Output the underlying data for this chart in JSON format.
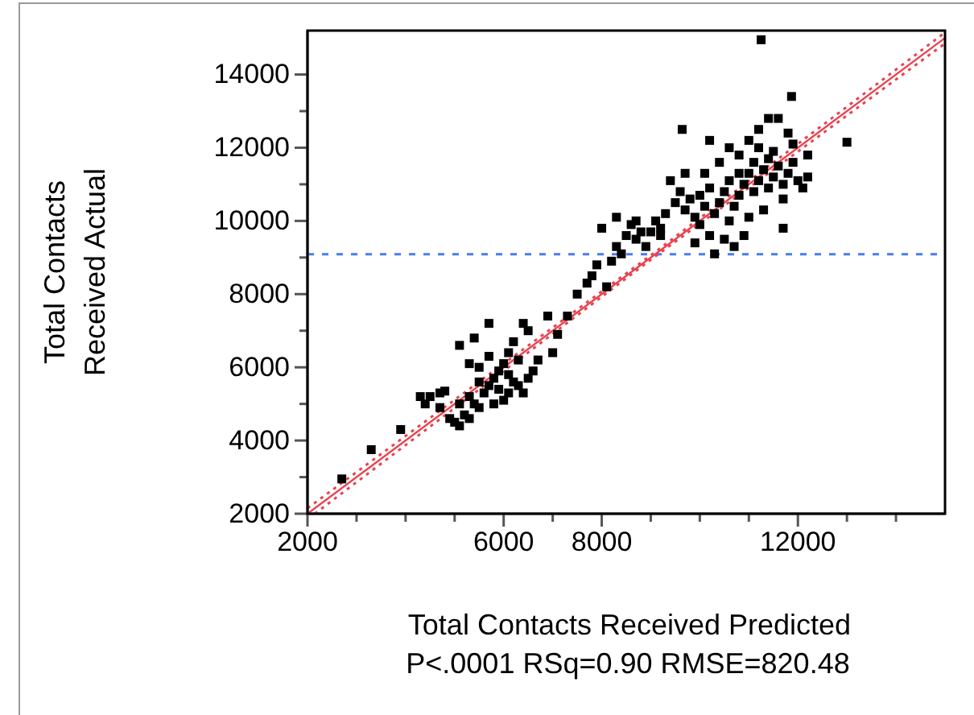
{
  "chart_data": {
    "type": "scatter",
    "xlabel": "Total Contacts Received Predicted",
    "ylabel": "Total Contacts Received Actual",
    "annotations": [
      "P<.0001 RSq=0.90 RMSE=820.48"
    ],
    "xlim": [
      2000,
      15000
    ],
    "ylim": [
      2000,
      15200
    ],
    "xticks": [
      2000,
      {
        "value": 3000,
        "label": null
      },
      {
        "value": 4000,
        "label": null
      },
      {
        "value": 5000,
        "label": null
      },
      6000,
      {
        "value": 7000,
        "label": null
      },
      8000,
      {
        "value": 9000,
        "label": null
      },
      {
        "value": 10000,
        "label": null
      },
      {
        "value": 11000,
        "label": null
      },
      12000,
      {
        "value": 13000,
        "label": null
      },
      {
        "value": 14000,
        "label": null
      }
    ],
    "yticks": [
      2000,
      {
        "value": 3000,
        "label": null
      },
      4000,
      {
        "value": 5000,
        "label": null
      },
      6000,
      {
        "value": 7000,
        "label": null
      },
      8000,
      {
        "value": 9000,
        "label": null
      },
      10000,
      {
        "value": 11000,
        "label": null
      },
      12000,
      {
        "value": 13000,
        "label": null
      },
      14000
    ],
    "grid": false,
    "marker": "square",
    "ref_lines": [
      {
        "axis": "y",
        "value": 9090,
        "color": "#4a7cf0",
        "line_style": "dashed"
      }
    ],
    "series": [
      {
        "color": "#000000",
        "x": [
          2700,
          3300,
          3900,
          4400,
          4300,
          4500,
          4700,
          4800,
          4700,
          4900,
          5000,
          5100,
          5200,
          5100,
          5300,
          5400,
          5500,
          5300,
          5600,
          5700,
          5500,
          5800,
          5900,
          6000,
          6100,
          5800,
          5900,
          6000,
          6100,
          6200,
          6300,
          6400,
          6500,
          6600,
          6700,
          6300,
          6100,
          5700,
          5500,
          5300,
          5100,
          5400,
          5700,
          6200,
          6500,
          6900,
          6400,
          7000,
          7100,
          7300,
          7500,
          7700,
          7800,
          7900,
          8100,
          8200,
          8300,
          8400,
          8500,
          8600,
          8700,
          8800,
          8900,
          9000,
          9100,
          9200,
          8300,
          8000,
          9300,
          9500,
          9600,
          9700,
          9800,
          9900,
          10000,
          10100,
          10200,
          10300,
          10400,
          10500,
          10600,
          10700,
          10800,
          10900,
          11000,
          11100,
          11200,
          11300,
          11400,
          11500,
          11600,
          11700,
          11800,
          11900,
          12000,
          10000,
          10200,
          10500,
          10700,
          10900,
          10300,
          9900,
          10100,
          10400,
          10600,
          10800,
          11000,
          11200,
          11400,
          11600,
          11800,
          11200,
          11500,
          11900,
          12100,
          12200,
          11700,
          11300,
          11000,
          10600,
          9700,
          9400,
          9200,
          10200,
          11870,
          13000,
          11250,
          9640,
          8700,
          11700,
          12200,
          10800,
          11100,
          11400
        ],
        "values": [
          2950,
          3750,
          4300,
          5000,
          5200,
          5200,
          5300,
          5350,
          4900,
          4600,
          4500,
          4400,
          4700,
          5000,
          5200,
          5000,
          4900,
          4600,
          5300,
          5500,
          5600,
          5700,
          5400,
          5100,
          5300,
          5000,
          5900,
          6100,
          5800,
          5600,
          5500,
          5300,
          5700,
          5900,
          6200,
          6200,
          6400,
          6300,
          6000,
          6100,
          6600,
          6800,
          7200,
          6700,
          7000,
          7400,
          7200,
          6400,
          6900,
          7400,
          8000,
          8300,
          8500,
          8800,
          8200,
          8900,
          9300,
          9100,
          9600,
          9900,
          9500,
          9700,
          9300,
          9700,
          10000,
          9600,
          10100,
          9800,
          10200,
          10500,
          10800,
          10300,
          10600,
          10100,
          10700,
          10400,
          10900,
          10200,
          10500,
          10800,
          11100,
          10400,
          10700,
          11000,
          11300,
          10800,
          11100,
          11400,
          10900,
          11200,
          11500,
          11000,
          11300,
          11600,
          11100,
          9900,
          9600,
          9500,
          9300,
          9600,
          9100,
          9400,
          11300,
          11600,
          12000,
          11800,
          12200,
          12500,
          12800,
          12800,
          12400,
          12000,
          11900,
          12100,
          10900,
          11200,
          10600,
          10300,
          10100,
          10000,
          11300,
          11100,
          9800,
          12200,
          13400,
          12150,
          14950,
          12500,
          10000,
          9800,
          11800,
          11300,
          11600,
          11700
        ]
      },
      {
        "type": "line",
        "color": "#e8434f",
        "line_style": "solid",
        "marker": "none",
        "x": [
          2000,
          15000
        ],
        "values": [
          2000,
          15000
        ]
      },
      {
        "type": "line",
        "color": "#e8434f",
        "line_style": "dotted",
        "marker": "none",
        "x": [
          2000,
          9000,
          15000
        ],
        "values": [
          2150,
          9060,
          15150
        ]
      },
      {
        "type": "line",
        "color": "#e8434f",
        "line_style": "dotted",
        "marker": "none",
        "x": [
          2150,
          9000,
          15000
        ],
        "values": [
          2000,
          8940,
          14850
        ]
      }
    ]
  }
}
